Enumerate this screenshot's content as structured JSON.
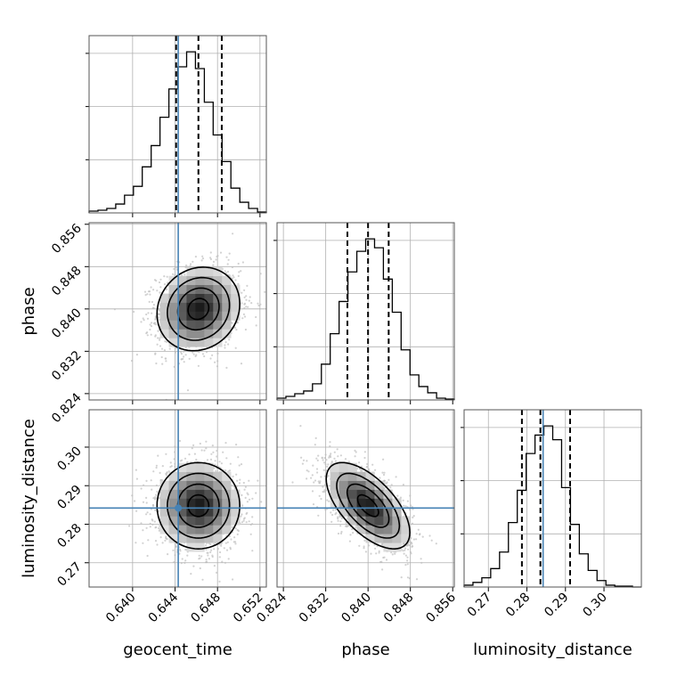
{
  "chart_data": {
    "type": "corner",
    "parameters": [
      "geocent_time",
      "phase",
      "luminosity_distance"
    ],
    "labels": {
      "geocent_time": "geocent_time",
      "phase": "phase",
      "luminosity_distance": "luminosity_distance"
    },
    "ranges": {
      "geocent_time": [
        0.6359,
        0.6526
      ],
      "phase": [
        0.8228,
        0.8563
      ],
      "luminosity_distance": [
        0.2637,
        0.3097
      ]
    },
    "ticks": {
      "geocent_time": [
        "0.640",
        "0.644",
        "0.648",
        "0.652"
      ],
      "phase": [
        "0.824",
        "0.832",
        "0.840",
        "0.848",
        "0.856"
      ],
      "luminosity_distance": [
        "0.27",
        "0.28",
        "0.29",
        "0.30"
      ]
    },
    "truths": {
      "geocent_time": 0.6443,
      "luminosity_distance": 0.2842
    },
    "quantiles": {
      "geocent_time": [
        0.6441,
        0.6462,
        0.6484
      ],
      "phase": [
        0.8361,
        0.84,
        0.8439
      ],
      "luminosity_distance": [
        0.2787,
        0.2835,
        0.2912
      ]
    },
    "marginals": {
      "geocent_time": {
        "bin_edges": [
          0.6359,
          0.63674,
          0.63757,
          0.63841,
          0.63924,
          0.64008,
          0.64091,
          0.64175,
          0.64258,
          0.64342,
          0.64425,
          0.64509,
          0.64592,
          0.64676,
          0.64759,
          0.64843,
          0.64926,
          0.6501,
          0.65093,
          0.65177,
          0.6526
        ],
        "counts": [
          2,
          3,
          5,
          10,
          20,
          30,
          52,
          76,
          108,
          140,
          165,
          182,
          163,
          125,
          88,
          58,
          28,
          12,
          5,
          1
        ]
      },
      "phase": {
        "bin_edges": [
          0.8228,
          0.82448,
          0.82615,
          0.82783,
          0.8295,
          0.83118,
          0.83285,
          0.83453,
          0.8362,
          0.83788,
          0.83955,
          0.84123,
          0.8429,
          0.84458,
          0.84625,
          0.84793,
          0.8496,
          0.85128,
          0.85295,
          0.85463,
          0.8563
        ],
        "counts": [
          2,
          4,
          7,
          10,
          18,
          40,
          74,
          110,
          143,
          166,
          180,
          170,
          135,
          98,
          56,
          28,
          15,
          8,
          2,
          1
        ]
      },
      "luminosity_distance": {
        "bin_edges": [
          0.2637,
          0.266,
          0.2683,
          0.2706,
          0.2729,
          0.2752,
          0.2775,
          0.2798,
          0.2821,
          0.2844,
          0.2867,
          0.289,
          0.2913,
          0.2936,
          0.2959,
          0.2982,
          0.3005,
          0.3028,
          0.3051,
          0.3074,
          0.3097
        ],
        "counts": [
          2,
          5,
          10,
          20,
          38,
          70,
          105,
          145,
          165,
          175,
          160,
          108,
          68,
          36,
          18,
          7,
          2,
          1,
          1,
          0
        ]
      }
    },
    "joint_2d": [
      {
        "x": "geocent_time",
        "y": "phase",
        "center": [
          0.6462,
          0.84
        ],
        "sd": [
          0.00195,
          0.00395
        ],
        "corr": 0.12
      },
      {
        "x": "geocent_time",
        "y": "luminosity_distance",
        "center": [
          0.6462,
          0.2848
        ],
        "sd": [
          0.00195,
          0.0056
        ],
        "corr": 0.0
      },
      {
        "x": "phase",
        "y": "luminosity_distance",
        "center": [
          0.84,
          0.2848
        ],
        "sd": [
          0.00395,
          0.0056
        ],
        "corr": -0.62
      }
    ],
    "contour_levels_sigma": [
      0.5,
      1.0,
      1.5,
      2.0
    ],
    "grid": true
  }
}
